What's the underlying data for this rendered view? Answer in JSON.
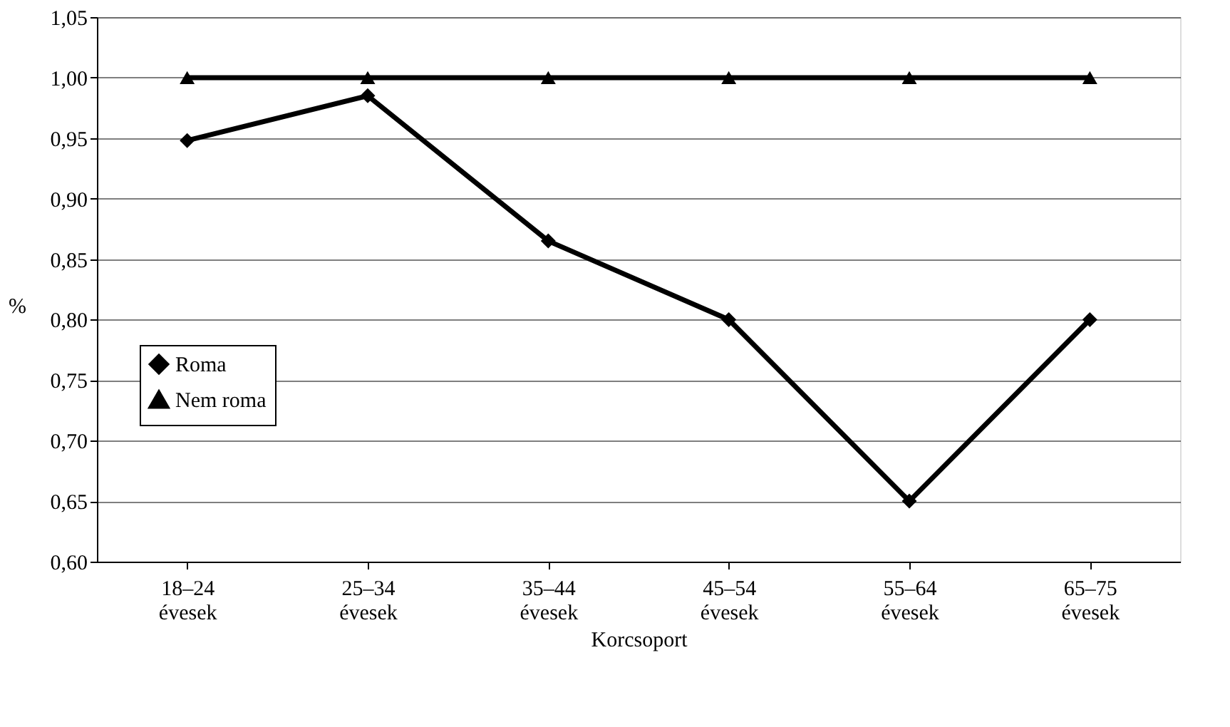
{
  "chart_data": {
    "type": "line",
    "xlabel": "Korcsoport",
    "ylabel": "%",
    "categories": [
      "18–24\névesek",
      "25–34\névesek",
      "35–44\névesek",
      "45–54\névesek",
      "55–64\névesek",
      "65–75\névesek"
    ],
    "series": [
      {
        "name": "Roma",
        "color": "#000000",
        "marker": "diamond",
        "values": [
          0.948,
          0.985,
          0.865,
          0.8,
          0.65,
          0.8
        ]
      },
      {
        "name": "Nem roma",
        "color": "#000000",
        "marker": "triangle",
        "values": [
          1.0,
          1.0,
          1.0,
          1.0,
          1.0,
          1.0
        ]
      }
    ],
    "ylim": [
      0.6,
      1.05
    ],
    "yticks": [
      {
        "value": 0.6,
        "label": "0,60"
      },
      {
        "value": 0.65,
        "label": "0,65"
      },
      {
        "value": 0.7,
        "label": "0,70"
      },
      {
        "value": 0.75,
        "label": "0,75"
      },
      {
        "value": 0.8,
        "label": "0,80"
      },
      {
        "value": 0.85,
        "label": "0,85"
      },
      {
        "value": 0.9,
        "label": "0,90"
      },
      {
        "value": 0.95,
        "label": "0,95"
      },
      {
        "value": 1.0,
        "label": "1,00"
      },
      {
        "value": 1.05,
        "label": "1,05"
      }
    ],
    "grid": "y",
    "legend": "left",
    "line_style": "solid"
  }
}
